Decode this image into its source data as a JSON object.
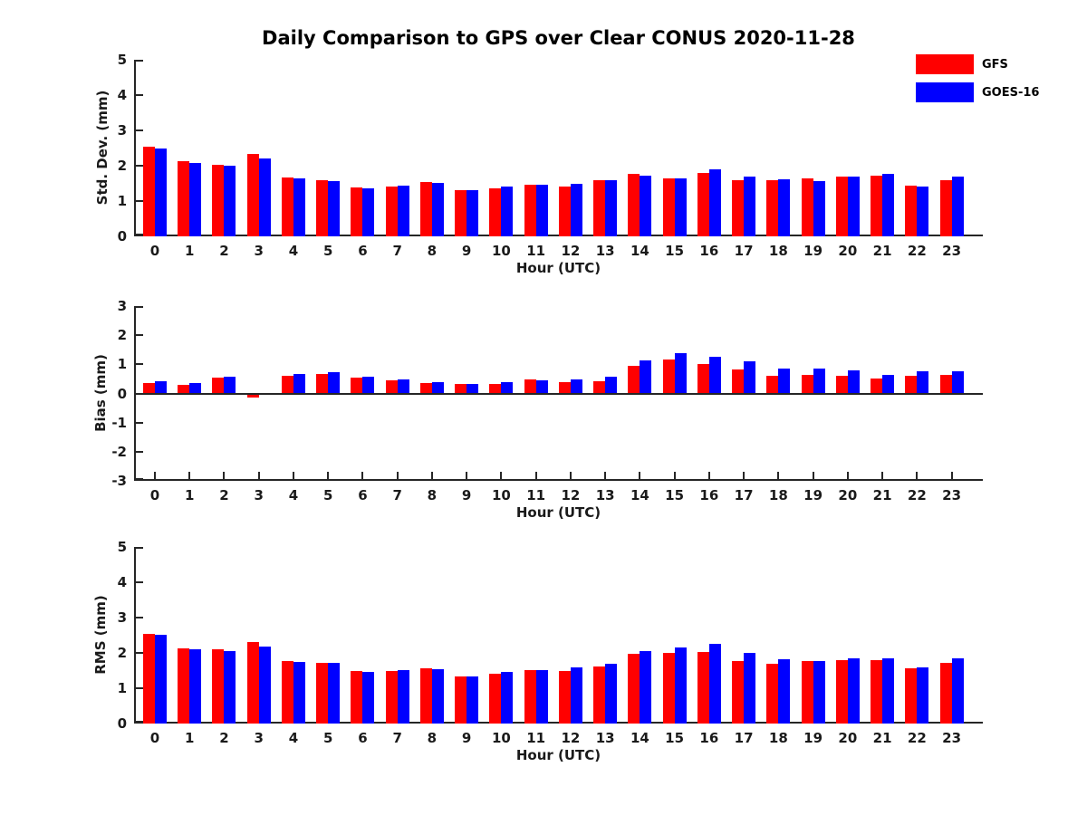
{
  "title": "Daily Comparison to GPS over Clear CONUS 2020-11-28",
  "colors": {
    "gfs": "#ff0000",
    "goes16": "#0000ff",
    "axis": "#262626"
  },
  "legend": [
    {
      "label": "GFS",
      "color": "#ff0000"
    },
    {
      "label": "GOES-16",
      "color": "#0000ff"
    }
  ],
  "chart_data": [
    {
      "type": "bar",
      "ylabel": "Std. Dev. (mm)",
      "xlabel": "Hour (UTC)",
      "ylim": [
        0,
        5
      ],
      "yticks": [
        0,
        1,
        2,
        3,
        4,
        5
      ],
      "grid": false,
      "legend_position": "top-right",
      "categories": [
        0,
        1,
        2,
        3,
        4,
        5,
        6,
        7,
        8,
        9,
        10,
        11,
        12,
        13,
        14,
        15,
        16,
        17,
        18,
        19,
        20,
        21,
        22,
        23
      ],
      "series": [
        {
          "name": "GFS",
          "color": "#ff0000",
          "values": [
            2.55,
            2.12,
            2.03,
            2.33,
            1.67,
            1.59,
            1.38,
            1.41,
            1.54,
            1.3,
            1.36,
            1.45,
            1.4,
            1.58,
            1.76,
            1.63,
            1.8,
            1.6,
            1.6,
            1.65,
            1.7,
            1.72,
            1.44,
            1.59
          ]
        },
        {
          "name": "GOES-16",
          "color": "#0000ff",
          "values": [
            2.5,
            2.08,
            2.0,
            2.21,
            1.64,
            1.56,
            1.36,
            1.44,
            1.51,
            1.31,
            1.41,
            1.45,
            1.5,
            1.58,
            1.73,
            1.64,
            1.9,
            1.68,
            1.62,
            1.56,
            1.69,
            1.76,
            1.4,
            1.7
          ]
        }
      ]
    },
    {
      "type": "bar",
      "ylabel": "Bias (mm)",
      "xlabel": "Hour (UTC)",
      "ylim": [
        -3,
        3
      ],
      "yticks": [
        3,
        2,
        1,
        0,
        -1,
        -2,
        -3
      ],
      "grid": false,
      "categories": [
        0,
        1,
        2,
        3,
        4,
        5,
        6,
        7,
        8,
        9,
        10,
        11,
        12,
        13,
        14,
        15,
        16,
        17,
        18,
        19,
        20,
        21,
        22,
        23
      ],
      "series": [
        {
          "name": "GFS",
          "color": "#ff0000",
          "values": [
            0.35,
            0.31,
            0.53,
            -0.14,
            0.61,
            0.68,
            0.55,
            0.44,
            0.36,
            0.34,
            0.33,
            0.49,
            0.38,
            0.43,
            0.94,
            1.17,
            1.02,
            0.83,
            0.61,
            0.65,
            0.62,
            0.51,
            0.62,
            0.65
          ]
        },
        {
          "name": "GOES-16",
          "color": "#0000ff",
          "values": [
            0.43,
            0.37,
            0.59,
            0.02,
            0.66,
            0.72,
            0.56,
            0.47,
            0.39,
            0.34,
            0.39,
            0.45,
            0.49,
            0.58,
            1.14,
            1.37,
            1.25,
            1.11,
            0.85,
            0.84,
            0.8,
            0.63,
            0.76,
            0.76
          ]
        }
      ]
    },
    {
      "type": "bar",
      "ylabel": "RMS (mm)",
      "xlabel": "Hour (UTC)",
      "ylim": [
        0,
        5
      ],
      "yticks": [
        0,
        1,
        2,
        3,
        4,
        5
      ],
      "grid": false,
      "categories": [
        0,
        1,
        2,
        3,
        4,
        5,
        6,
        7,
        8,
        9,
        10,
        11,
        12,
        13,
        14,
        15,
        16,
        17,
        18,
        19,
        20,
        21,
        22,
        23
      ],
      "series": [
        {
          "name": "GFS",
          "color": "#ff0000",
          "values": [
            2.55,
            2.12,
            2.09,
            2.31,
            1.78,
            1.71,
            1.48,
            1.48,
            1.56,
            1.34,
            1.41,
            1.52,
            1.48,
            1.62,
            1.97,
            2.01,
            2.02,
            1.78,
            1.69,
            1.76,
            1.79,
            1.79,
            1.56,
            1.72
          ]
        },
        {
          "name": "GOES-16",
          "color": "#0000ff",
          "values": [
            2.51,
            2.09,
            2.06,
            2.17,
            1.75,
            1.71,
            1.46,
            1.51,
            1.54,
            1.34,
            1.46,
            1.52,
            1.59,
            1.68,
            2.05,
            2.15,
            2.25,
            2.0,
            1.83,
            1.76,
            1.85,
            1.85,
            1.59,
            1.85
          ]
        }
      ]
    }
  ]
}
